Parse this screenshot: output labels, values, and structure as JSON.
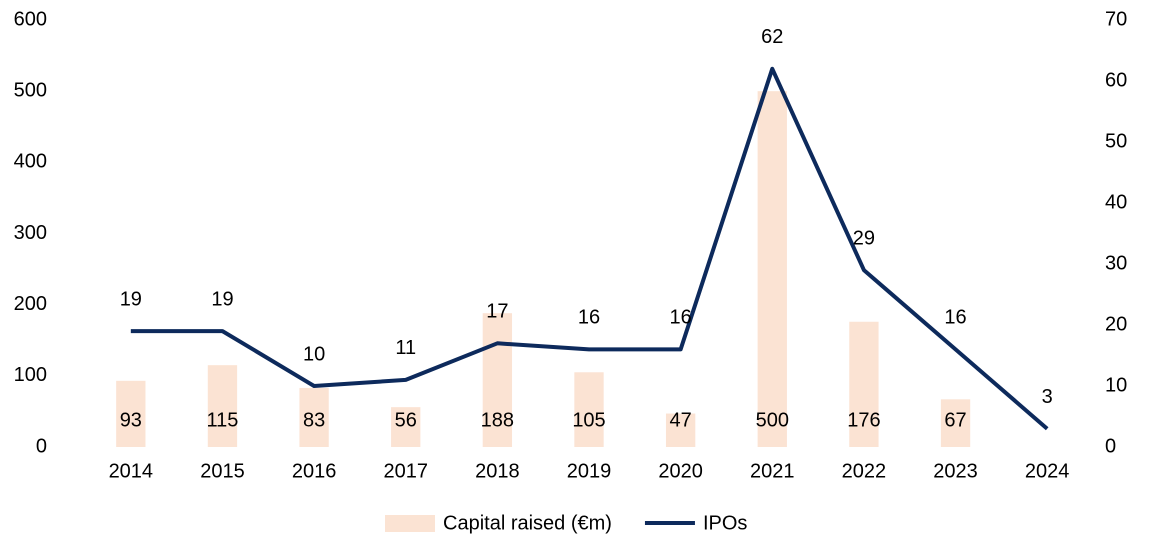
{
  "chart_data": {
    "type": "bar-line",
    "categories": [
      "2014",
      "2015",
      "2016",
      "2017",
      "2018",
      "2019",
      "2020",
      "2021",
      "2022",
      "2023",
      "2024"
    ],
    "series": [
      {
        "name": "Capital raised (€m)",
        "type": "bar",
        "color": "#fbe3d3",
        "values": [
          93,
          115,
          83,
          56,
          188,
          105,
          47,
          500,
          176,
          67,
          null
        ]
      },
      {
        "name": "IPOs",
        "type": "line",
        "axis": "y2",
        "color": "#0d2a5c",
        "values": [
          19,
          19,
          10,
          11,
          17,
          16,
          16,
          62,
          29,
          16,
          3
        ]
      }
    ],
    "ylim": [
      0,
      600
    ],
    "yticks": [
      0,
      100,
      200,
      300,
      400,
      500,
      600
    ],
    "y2lim": [
      0,
      70
    ],
    "y2ticks": [
      0,
      10,
      20,
      30,
      40,
      50,
      60,
      70
    ],
    "grid": false,
    "legend": "bottom"
  }
}
